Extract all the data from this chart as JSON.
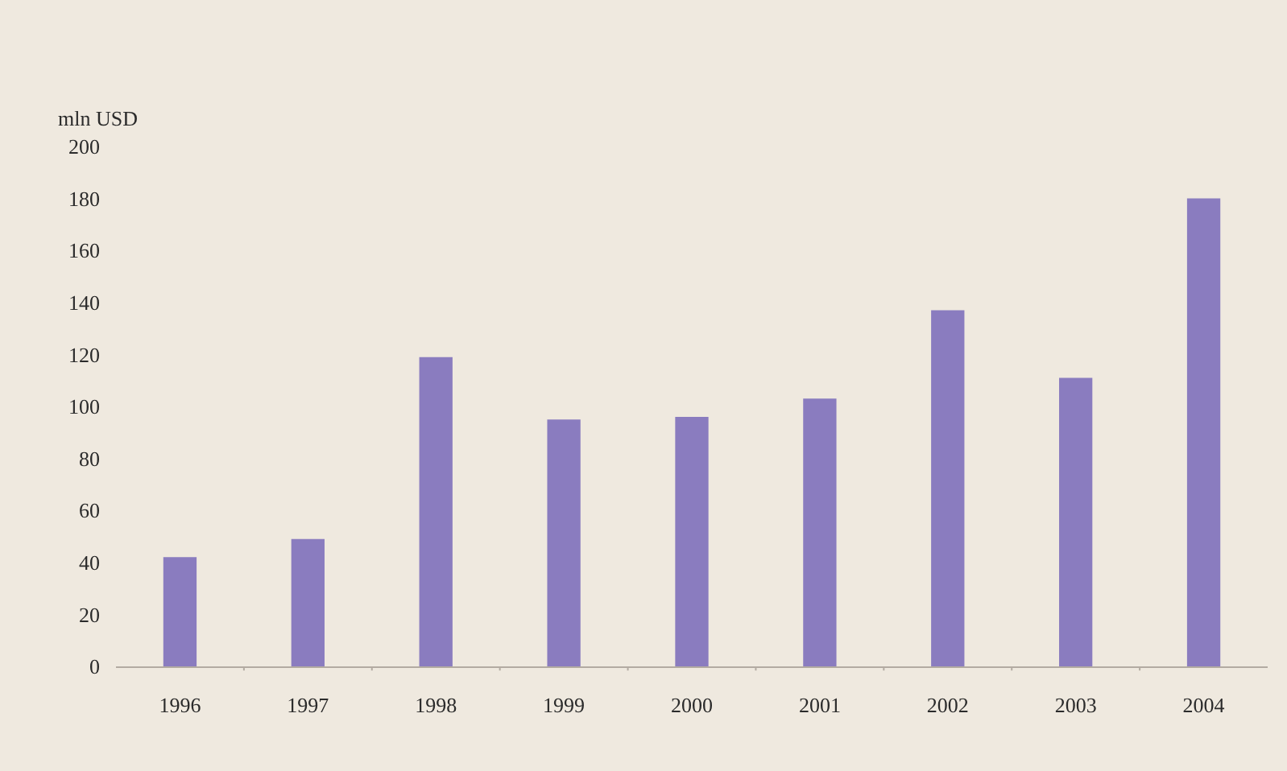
{
  "chart_data": {
    "type": "bar",
    "ylabel": "mln USD",
    "categories": [
      "1996",
      "1997",
      "1998",
      "1999",
      "2000",
      "2001",
      "2002",
      "2003",
      "2004"
    ],
    "values": [
      42,
      49,
      119,
      95,
      96,
      103,
      137,
      111,
      180
    ],
    "color": "#8a7cbf",
    "ylim": [
      0,
      200
    ],
    "yticks": [
      0,
      20,
      40,
      60,
      80,
      100,
      120,
      140,
      160,
      180,
      200
    ]
  }
}
